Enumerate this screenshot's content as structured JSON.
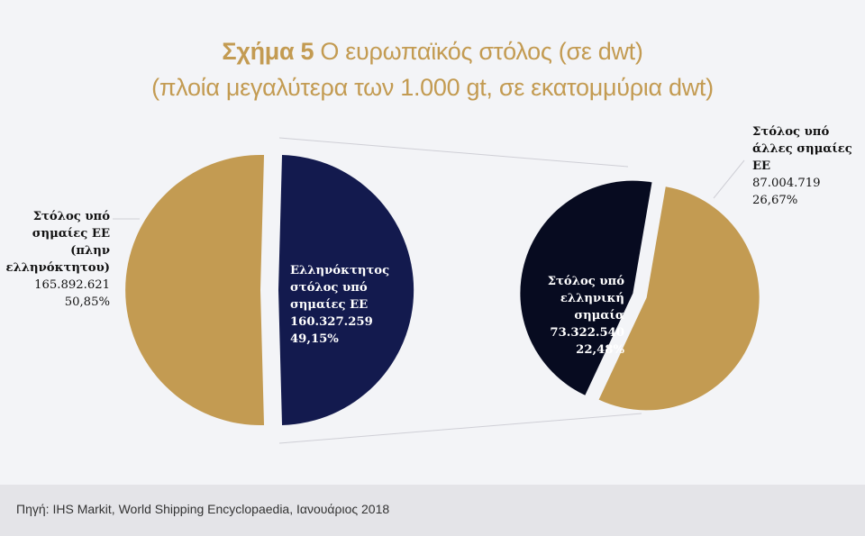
{
  "title": {
    "prefix": "Σχήμα 5",
    "line1": "Ο ευρωπαϊκός στόλος (σε dwt)",
    "line2": "(πλοία μεγαλύτερα των 1.000 gt, σε εκατομμύρια dwt)"
  },
  "colors": {
    "gold": "#c39b52",
    "navy": "#131a4e",
    "dark": "#070b20",
    "title": "#c39b52",
    "background": "#f3f4f7",
    "footer_bg": "#e4e4e8"
  },
  "chart_data": [
    {
      "type": "pie",
      "name_printed": false,
      "slices": [
        {
          "label_lines": [
            "Στόλος υπό",
            "σημαίες ΕΕ",
            "(πλην",
            "ελληνόκτητου)"
          ],
          "value": 165892621,
          "value_text": "165.892.621",
          "percent_text": "50,85%",
          "color": "#c39b52"
        },
        {
          "label_lines": [
            "Ελληνόκτητος",
            "στόλος υπό",
            "σημαίες ΕΕ"
          ],
          "value": 160327259,
          "value_text": "160.327.259",
          "percent_text": "49,15%",
          "color": "#131a4e"
        }
      ]
    },
    {
      "type": "pie",
      "name_printed": false,
      "slices": [
        {
          "label_lines": [
            "Στόλος υπό",
            "άλλες σημαίες",
            "ΕΕ"
          ],
          "value": 87004719,
          "value_text": "87.004.719",
          "percent_text": "26,67%",
          "color": "#c39b52"
        },
        {
          "label_lines": [
            "Στόλος υπό",
            "ελληνική",
            "σημαία"
          ],
          "value": 73322540,
          "value_text": "73.322.540",
          "percent_text": "22,48%",
          "color": "#070b20"
        }
      ]
    }
  ],
  "footer": {
    "source": "Πηγή: IHS Markit, World Shipping Encyclopaedia, Ιανουάριος 2018"
  }
}
